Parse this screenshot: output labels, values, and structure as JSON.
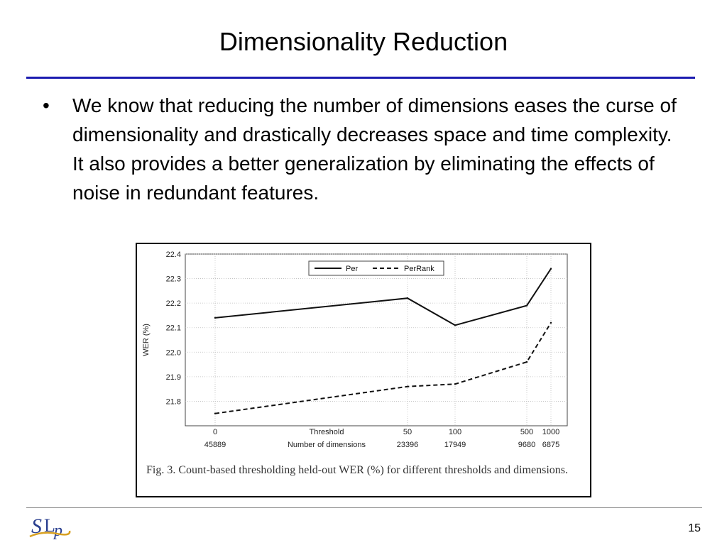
{
  "slide": {
    "title": "Dimensionality Reduction",
    "bullet_marker": "•",
    "bullet_text": "We know that reducing the number of dimensions eases the curse of dimensionality and drastically decreases space and time complexity. It also provides a better generalization by eliminating the effects of noise in redundant features.",
    "page_number": "15",
    "logo_text": "SLP",
    "rule_color": "#1c1cb0"
  },
  "figure": {
    "caption": "Fig. 3.   Count-based thresholding held-out WER (%) for different thresholds and dimensions."
  },
  "chart_data": {
    "type": "line",
    "ylabel": "WER (%)",
    "ylim": [
      21.7,
      22.4
    ],
    "yticks": [
      "22.4",
      "22.3",
      "22.2",
      "22.1",
      "22.0",
      "21.9",
      "21.8"
    ],
    "ytick_values": [
      22.4,
      22.3,
      22.2,
      22.1,
      22.0,
      21.9,
      21.8
    ],
    "x_row1_label": "Threshold",
    "x_row2_label": "Number of dimensions",
    "x_thresholds": [
      "0",
      "50",
      "100",
      "500",
      "1000"
    ],
    "x_dimensions": [
      "45889",
      "23396",
      "17949",
      "9680",
      "6875"
    ],
    "grid": true,
    "legend_position": "top",
    "series": [
      {
        "name": "Per",
        "style": "solid",
        "values": [
          22.14,
          22.22,
          22.11,
          22.19,
          22.34
        ]
      },
      {
        "name": "PerRank",
        "style": "dashed",
        "values": [
          21.75,
          21.86,
          21.87,
          21.96,
          22.12
        ]
      }
    ]
  }
}
